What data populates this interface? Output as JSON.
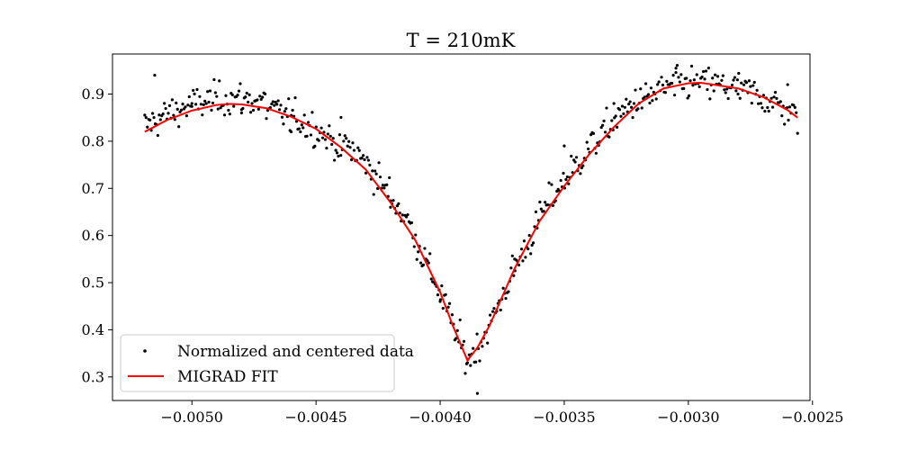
{
  "chart_data": {
    "type": "scatter",
    "title": "T = 210mK",
    "xlabel": "",
    "ylabel": "",
    "xlim": [
      -0.00532,
      -0.00251
    ],
    "ylim": [
      0.25,
      0.985
    ],
    "xticks": [
      -0.005,
      -0.0045,
      -0.004,
      -0.0035,
      -0.003,
      -0.0025
    ],
    "xtick_labels": [
      "−0.0050",
      "−0.0045",
      "−0.0040",
      "−0.0035",
      "−0.0030",
      "−0.0025"
    ],
    "yticks": [
      0.3,
      0.4,
      0.5,
      0.6,
      0.7,
      0.8,
      0.9
    ],
    "ytick_labels": [
      "0.3",
      "0.4",
      "0.5",
      "0.6",
      "0.7",
      "0.8",
      "0.9"
    ],
    "grid": false,
    "legend_position": "lower-left",
    "series": [
      {
        "name": "Normalized and centered data",
        "kind": "scatter",
        "color": "#000000",
        "x_range": [
          -0.00519,
          -0.00256
        ],
        "num_points": 500,
        "noise_amplitude": 0.03,
        "sample_points": [
          {
            "x": -0.00515,
            "y": 0.94
          },
          {
            "x": -0.005,
            "y": 0.88
          },
          {
            "x": -0.0048,
            "y": 0.86
          },
          {
            "x": -0.0046,
            "y": 0.82
          },
          {
            "x": -0.0044,
            "y": 0.77
          },
          {
            "x": -0.0042,
            "y": 0.66
          },
          {
            "x": -0.004,
            "y": 0.46
          },
          {
            "x": -0.00389,
            "y": 0.33
          },
          {
            "x": -0.00385,
            "y": 0.265
          },
          {
            "x": -0.0037,
            "y": 0.55
          },
          {
            "x": -0.0035,
            "y": 0.79
          },
          {
            "x": -0.0033,
            "y": 0.88
          },
          {
            "x": -0.00305,
            "y": 0.955
          },
          {
            "x": -0.0028,
            "y": 0.9
          },
          {
            "x": -0.0026,
            "y": 0.92
          }
        ]
      },
      {
        "name": "MIGRAD FIT",
        "kind": "line",
        "color": "#ff0000",
        "points": [
          [
            -0.00519,
            0.82
          ],
          [
            -0.0051,
            0.845
          ],
          [
            -0.005,
            0.865
          ],
          [
            -0.0049,
            0.877
          ],
          [
            -0.00485,
            0.879
          ],
          [
            -0.0048,
            0.878
          ],
          [
            -0.0047,
            0.87
          ],
          [
            -0.0046,
            0.852
          ],
          [
            -0.0045,
            0.826
          ],
          [
            -0.0044,
            0.787
          ],
          [
            -0.0043,
            0.74
          ],
          [
            -0.0042,
            0.67
          ],
          [
            -0.0041,
            0.59
          ],
          [
            -0.004,
            0.48
          ],
          [
            -0.00395,
            0.41
          ],
          [
            -0.00389,
            0.335
          ],
          [
            -0.00385,
            0.362
          ],
          [
            -0.0038,
            0.41
          ],
          [
            -0.00375,
            0.47
          ],
          [
            -0.0037,
            0.53
          ],
          [
            -0.00365,
            0.58
          ],
          [
            -0.0036,
            0.63
          ],
          [
            -0.0035,
            0.705
          ],
          [
            -0.0034,
            0.772
          ],
          [
            -0.0033,
            0.83
          ],
          [
            -0.0032,
            0.88
          ],
          [
            -0.0031,
            0.912
          ],
          [
            -0.003,
            0.923
          ],
          [
            -0.00295,
            0.924
          ],
          [
            -0.0029,
            0.92
          ],
          [
            -0.0028,
            0.912
          ],
          [
            -0.0027,
            0.894
          ],
          [
            -0.0026,
            0.866
          ],
          [
            -0.00256,
            0.85
          ]
        ]
      }
    ]
  }
}
